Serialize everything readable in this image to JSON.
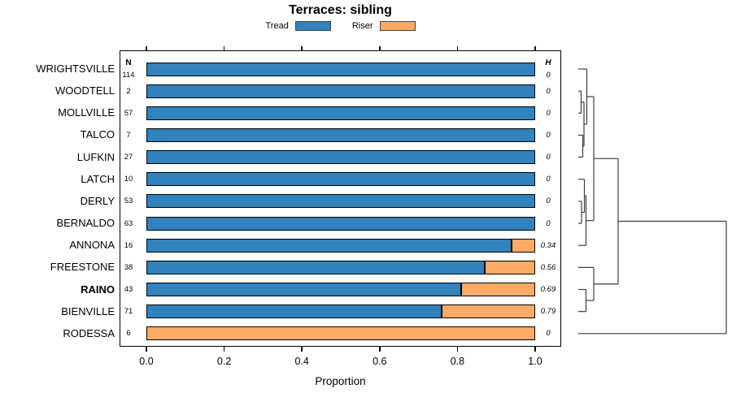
{
  "title": "Terraces: sibling",
  "legend": [
    {
      "label": "Tread",
      "color": "#3182bd"
    },
    {
      "label": "Riser",
      "color": "#fdab67"
    }
  ],
  "columns": {
    "n_header": "N",
    "h_header": "H"
  },
  "chart_data": {
    "type": "bar",
    "orientation": "horizontal",
    "stacked": true,
    "title": "Terraces: sibling",
    "xlabel": "Proportion",
    "xlim": [
      0,
      1
    ],
    "x_ticks": [
      "0.0",
      "0.2",
      "0.4",
      "0.6",
      "0.8",
      "1.0"
    ],
    "categories": [
      "WRIGHTSVILLE",
      "WOODTELL",
      "MOLLVILLE",
      "TALCO",
      "LUFKIN",
      "LATCH",
      "DERLY",
      "BERNALDO",
      "ANNONA",
      "FREESTONE",
      "RAINO",
      "BIENVILLE",
      "RODESSA"
    ],
    "bold_category": "RAINO",
    "n_values": [
      114,
      2,
      57,
      7,
      27,
      10,
      53,
      63,
      16,
      38,
      43,
      71,
      6
    ],
    "h_values": [
      "0",
      "0",
      "0",
      "0",
      "0",
      "0",
      "0",
      "0",
      "0.34",
      "0.56",
      "0.69",
      "0.79",
      "0"
    ],
    "series": [
      {
        "name": "Tread",
        "color": "#3182bd",
        "values": [
          1,
          1,
          1,
          1,
          1,
          1,
          1,
          1,
          0.94,
          0.87,
          0.81,
          0.76,
          0
        ]
      },
      {
        "name": "Riser",
        "color": "#fdab67",
        "values": [
          0,
          0,
          0,
          0,
          0,
          0,
          0,
          0,
          0.06,
          0.13,
          0.19,
          0.24,
          1
        ]
      }
    ],
    "dendrogram": {
      "note": "constrained cluster tree drawn right of plot; merges listed bottom-up, x = merge height in px",
      "leaf_start_x": 711,
      "merges": [
        [
          "WOODTELL",
          "MOLLVILLE",
          714.5
        ],
        [
          "TALCO",
          "LUFKIN",
          716.5
        ],
        [
          "m0",
          "m1",
          718
        ],
        [
          "WRIGHTSVILLE",
          "m2",
          721.5
        ],
        [
          "DERLY",
          "BERNALDO",
          715
        ],
        [
          "LATCH",
          "m4",
          718.5
        ],
        [
          "m5",
          "ANNONA",
          720.5
        ],
        [
          "m3",
          "m6",
          730
        ],
        [
          "RAINO",
          "BIENVILLE",
          720.5
        ],
        [
          "FREESTONE",
          "m8",
          730
        ],
        [
          "m7",
          "m9",
          760
        ],
        [
          "m10",
          "RODESSA",
          893
        ]
      ]
    }
  }
}
